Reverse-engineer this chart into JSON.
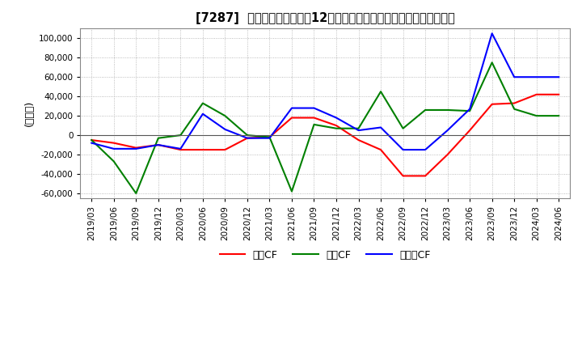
{
  "title": "[7287]  キャッシュフローの12か月移動合計の対前年同期増減額の推移",
  "ylabel": "(百万円)",
  "ylim": [
    -65000,
    110000
  ],
  "yticks": [
    -60000,
    -40000,
    -20000,
    0,
    20000,
    40000,
    60000,
    80000,
    100000
  ],
  "legend_labels": [
    "営業CF",
    "投資CF",
    "フリーCF"
  ],
  "legend_colors": [
    "#ff0000",
    "#008000",
    "#0000ff"
  ],
  "dates": [
    "2019/03",
    "2019/06",
    "2019/09",
    "2019/12",
    "2020/03",
    "2020/06",
    "2020/09",
    "2020/12",
    "2021/03",
    "2021/06",
    "2021/09",
    "2021/12",
    "2022/03",
    "2022/06",
    "2022/09",
    "2022/12",
    "2023/03",
    "2023/06",
    "2023/09",
    "2023/12",
    "2024/03",
    "2024/06"
  ],
  "operating_cf": [
    -5000,
    -8000,
    -13000,
    -10000,
    -15000,
    -15000,
    -15000,
    -3000,
    -2000,
    18000,
    18000,
    10000,
    -5000,
    -15000,
    -42000,
    -42000,
    -20000,
    5000,
    32000,
    33000,
    42000,
    42000
  ],
  "investing_cf": [
    -5000,
    -27000,
    -60000,
    -3000,
    0,
    33000,
    20000,
    0,
    -2000,
    -58000,
    11000,
    7000,
    7000,
    45000,
    7000,
    26000,
    26000,
    25000,
    75000,
    27000,
    20000,
    20000
  ],
  "free_cf": [
    -8000,
    -14000,
    -14000,
    -10000,
    -14000,
    22000,
    6000,
    -3000,
    -3000,
    28000,
    28000,
    18000,
    5000,
    8000,
    -15000,
    -15000,
    5000,
    27000,
    105000,
    60000,
    60000,
    60000
  ],
  "background_color": "#ffffff",
  "plot_bg_color": "#ffffff",
  "grid_color": "#aaaaaa",
  "grid_style": "dotted"
}
